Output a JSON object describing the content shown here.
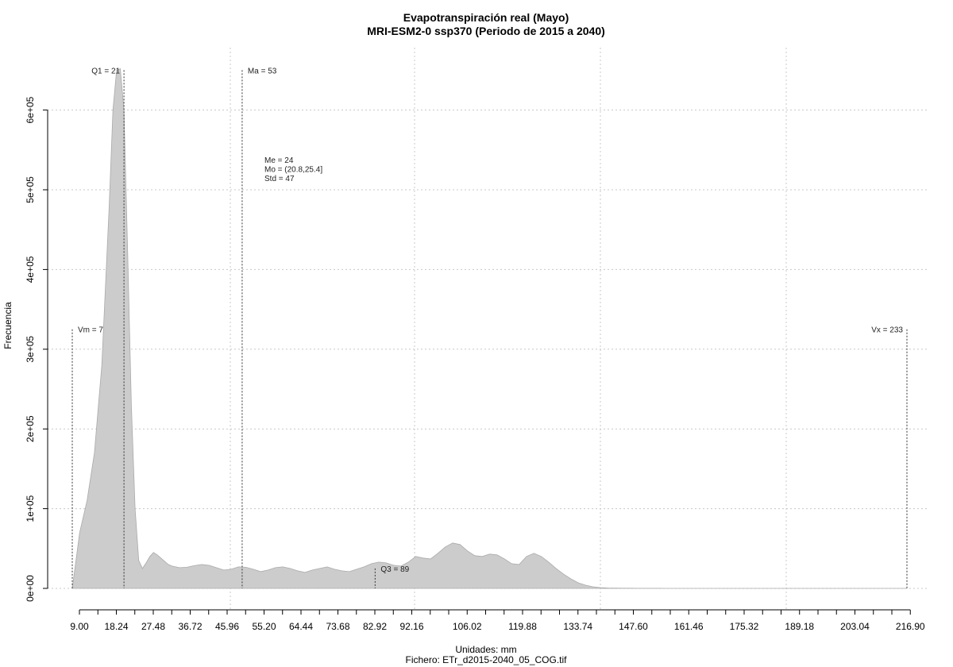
{
  "chart_data": {
    "type": "area",
    "title": "Evapotranspiración real (Mayo)",
    "subtitle": "MRI-ESM2-0 ssp370 (Periodo de 2015 a 2040)",
    "xlabel": "Unidades: mm",
    "footer": "Fichero: ETr_d2015-2040_05_COG.tif",
    "ylabel": "Frecuencia",
    "xlim": [
      7,
      233
    ],
    "ylim": [
      0,
      650000
    ],
    "x_tick_labels": [
      "9.00",
      "18.24",
      "27.48",
      "36.72",
      "45.96",
      "55.20",
      "64.44",
      "73.68",
      "82.92",
      "92.16",
      "106.02",
      "119.88",
      "133.74",
      "147.60",
      "161.46",
      "175.32",
      "189.18",
      "203.04",
      "216.90"
    ],
    "y_ticks": [
      0,
      100000,
      200000,
      300000,
      400000,
      500000,
      600000
    ],
    "y_tick_labels": [
      "0e+00",
      "1e+05",
      "2e+05",
      "3e+05",
      "4e+05",
      "5e+05",
      "6e+05"
    ],
    "grid": true,
    "fill_color": "#cccccc",
    "series": [
      {
        "x": [
          7,
          9,
          11,
          13,
          15,
          17,
          18,
          19,
          20,
          21,
          22,
          23,
          24,
          25,
          26,
          27,
          28,
          29,
          30,
          31,
          32,
          33,
          34,
          35,
          36,
          38,
          40,
          42,
          44,
          46,
          48,
          50,
          52,
          54,
          56,
          58,
          60,
          62,
          64,
          66,
          68,
          70,
          72,
          74,
          76,
          78,
          80,
          82,
          84,
          86,
          88,
          90,
          92,
          94,
          96,
          98,
          100,
          102,
          104,
          106,
          108,
          110,
          112,
          114,
          116,
          118,
          120,
          122,
          124,
          126,
          128,
          130,
          132,
          134,
          136,
          138,
          140,
          142,
          144,
          146,
          148,
          150,
          152,
          154,
          156,
          158,
          160,
          162,
          164,
          166,
          168,
          170,
          175,
          180,
          190,
          200,
          210,
          220,
          230,
          233
        ],
        "y": [
          0,
          70000,
          110000,
          170000,
          280000,
          480000,
          600000,
          650000,
          652000,
          600000,
          420000,
          230000,
          100000,
          35000,
          25000,
          32000,
          40000,
          45000,
          42000,
          38000,
          34000,
          30000,
          28000,
          27000,
          26000,
          26500,
          28500,
          30000,
          29000,
          26000,
          23000,
          24000,
          27000,
          26500,
          24000,
          21000,
          23000,
          26000,
          27000,
          25000,
          22000,
          20000,
          23000,
          25000,
          27000,
          24000,
          22000,
          21000,
          24000,
          27000,
          31000,
          33000,
          32000,
          29000,
          28000,
          33000,
          40000,
          38000,
          37000,
          44000,
          52000,
          57000,
          55000,
          47000,
          41000,
          40000,
          43000,
          42000,
          37000,
          31000,
          30000,
          40000,
          44000,
          40000,
          33000,
          25000,
          18000,
          12000,
          7000,
          4000,
          2000,
          1000,
          500,
          300,
          200,
          150,
          100,
          80,
          60,
          50,
          40,
          30,
          20,
          10,
          0,
          0,
          0,
          0,
          0,
          0
        ]
      }
    ],
    "stat_lines": [
      {
        "label": "Vm = 7",
        "x": 7,
        "y": 325000,
        "side": "right"
      },
      {
        "label": "Q1 = 21",
        "x": 21,
        "y": 650000,
        "side": "left"
      },
      {
        "label": "Ma = 53",
        "x": 53,
        "y": 650000,
        "side": "right"
      },
      {
        "label": "Q3 = 89",
        "x": 89,
        "y": 25000,
        "side": "right"
      },
      {
        "label": "Vx = 233",
        "x": 233,
        "y": 325000,
        "side": "left"
      }
    ],
    "stats_text": [
      "Me = 24",
      "Mo = (20.8,25.4]",
      "Std = 47"
    ]
  }
}
